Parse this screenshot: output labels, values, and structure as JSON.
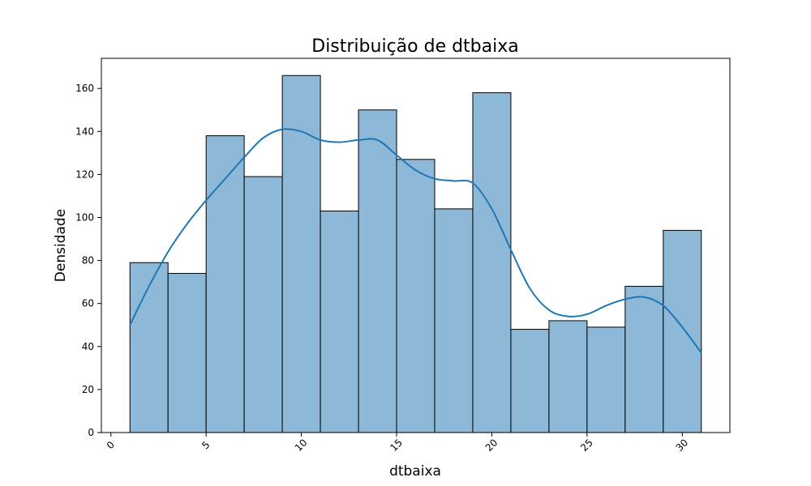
{
  "chart_data": {
    "type": "bar",
    "title": "Distribuição de dtbaixa",
    "xlabel": "dtbaixa",
    "ylabel": "Densidade",
    "bin_edges": [
      1,
      3,
      5,
      7,
      9,
      11,
      13,
      15,
      17,
      19,
      21,
      23,
      25,
      27,
      29,
      31
    ],
    "values": [
      79,
      74,
      138,
      119,
      166,
      103,
      150,
      127,
      104,
      158,
      48,
      52,
      49,
      68,
      94
    ],
    "kde": {
      "x": [
        1,
        2,
        3,
        4,
        5,
        6,
        7,
        8,
        9,
        10,
        11,
        12,
        13,
        14,
        15,
        16,
        17,
        18,
        19,
        20,
        21,
        22,
        23,
        24,
        25,
        26,
        27,
        28,
        29,
        30,
        31
      ],
      "y": [
        50,
        68,
        84,
        97,
        108,
        118,
        128,
        137,
        141,
        140,
        136,
        135,
        136,
        136,
        129,
        122,
        118,
        117,
        116,
        104,
        85,
        67,
        57,
        54,
        55,
        59,
        62,
        63,
        59,
        49,
        37
      ]
    },
    "xlim": [
      -0.5,
      32.5
    ],
    "ylim": [
      0,
      174
    ],
    "xticks": [
      0,
      5,
      10,
      15,
      20,
      25,
      30
    ],
    "xtick_rotation": -45,
    "yticks": [
      0,
      20,
      40,
      60,
      80,
      100,
      120,
      140,
      160
    ],
    "bar_color": "#8db8d8",
    "bar_edge_color": "#000000",
    "line_color": "#1f77b4",
    "grid": false,
    "legend": "none"
  }
}
